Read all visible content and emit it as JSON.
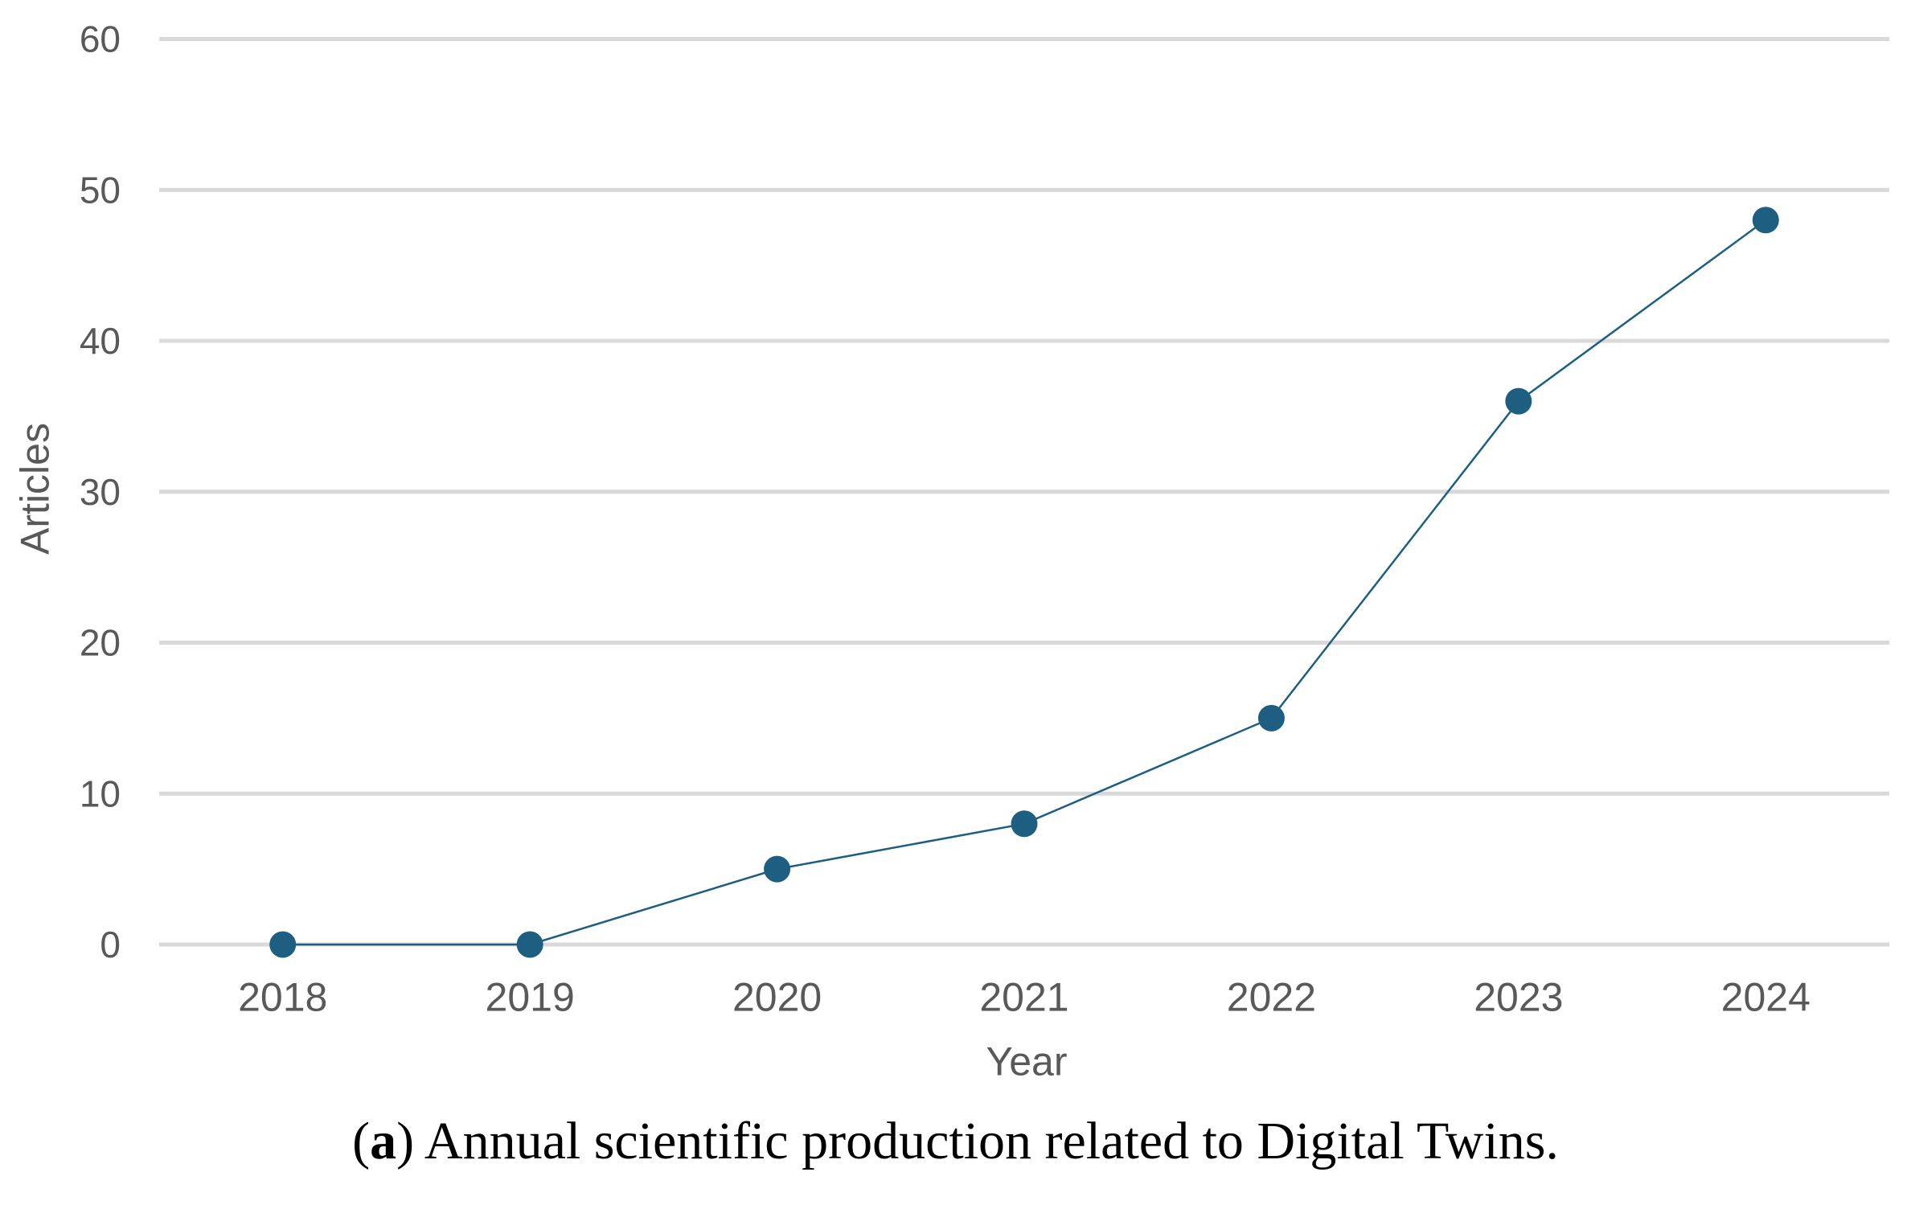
{
  "chart_data": {
    "type": "line",
    "x": [
      "2018",
      "2019",
      "2020",
      "2021",
      "2022",
      "2023",
      "2024"
    ],
    "values": [
      0,
      0,
      5,
      8,
      15,
      36,
      48
    ],
    "xlabel": "Year",
    "ylabel": "Articles",
    "yticks": [
      0,
      10,
      20,
      30,
      40,
      50,
      60
    ],
    "ylim": [
      0,
      60
    ],
    "grid": "horizontal",
    "legend": "none",
    "line_color": "#1e5f81",
    "marker_color": "#1e5f81",
    "gridline_color": "#d9d9d9",
    "axis_text_color": "#595959"
  },
  "caption": {
    "paren_open": "(",
    "marker": "a",
    "paren_close": ")",
    "text": "Annual scientific production related to Digital Twins."
  }
}
